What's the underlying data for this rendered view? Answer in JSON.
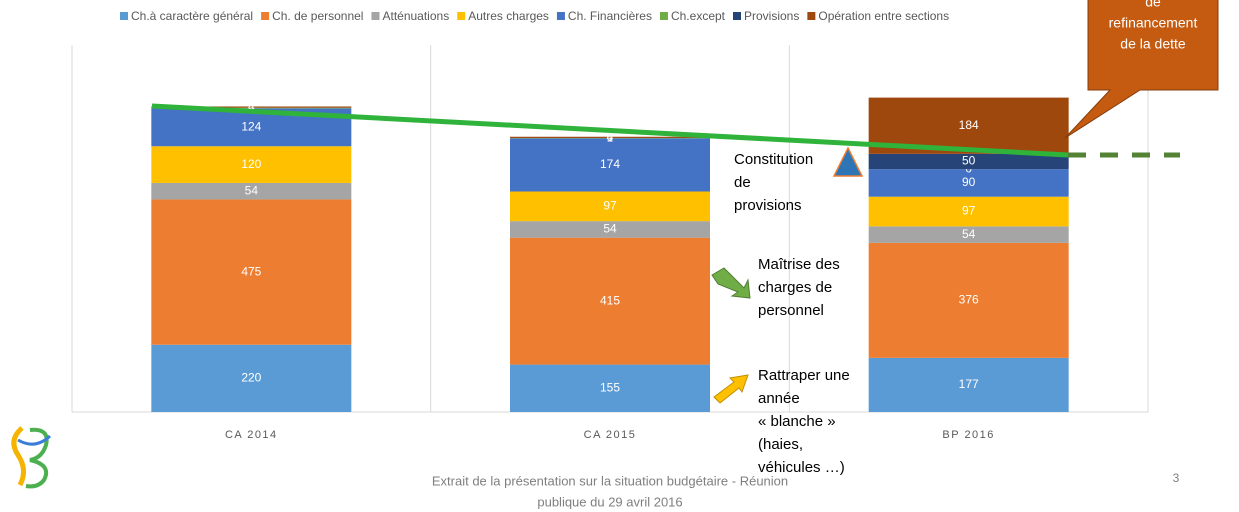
{
  "chart_data": {
    "type": "stacked_bar",
    "categories": [
      "CA 2014",
      "CA 2015",
      "BP 2016"
    ],
    "series": [
      {
        "name": "Ch.à caractère général",
        "color": "#5b9bd5",
        "values": [
          220,
          155,
          177
        ]
      },
      {
        "name": "Ch. de personnel",
        "color": "#ed7d31",
        "values": [
          475,
          415,
          376
        ]
      },
      {
        "name": "Atténuations",
        "color": "#a5a5a5",
        "values": [
          54,
          54,
          54
        ]
      },
      {
        "name": "Autres charges",
        "color": "#ffc000",
        "values": [
          120,
          97,
          97
        ]
      },
      {
        "name": "Ch. Financières",
        "color": "#4472c4",
        "values": [
          124,
          174,
          90
        ]
      },
      {
        "name": "Ch.except",
        "color": "#70ad47",
        "values": [
          2,
          1,
          0
        ]
      },
      {
        "name": "Provisions",
        "color": "#264478",
        "values": [
          0,
          0,
          50
        ]
      },
      {
        "name": "Opération entre sections",
        "color": "#9e480e",
        "values": [
          4,
          4,
          184
        ]
      }
    ],
    "ylim": [
      0,
      1200
    ],
    "annotations": {
      "callout": [
        "de",
        "refinancement",
        "de la dette"
      ],
      "provisions": [
        "Constitution",
        "de",
        "provisions"
      ],
      "personnel": [
        "Maîtrise des",
        "charges de",
        "personnel"
      ],
      "general": [
        "Rattraper une",
        "année",
        "« blanche »",
        "(haies,",
        "véhicules …)"
      ]
    },
    "footer": [
      "Extrait de la présentation sur la situation budgétaire - Réunion",
      "publique du 29 avril 2016"
    ],
    "page_number": "3"
  }
}
